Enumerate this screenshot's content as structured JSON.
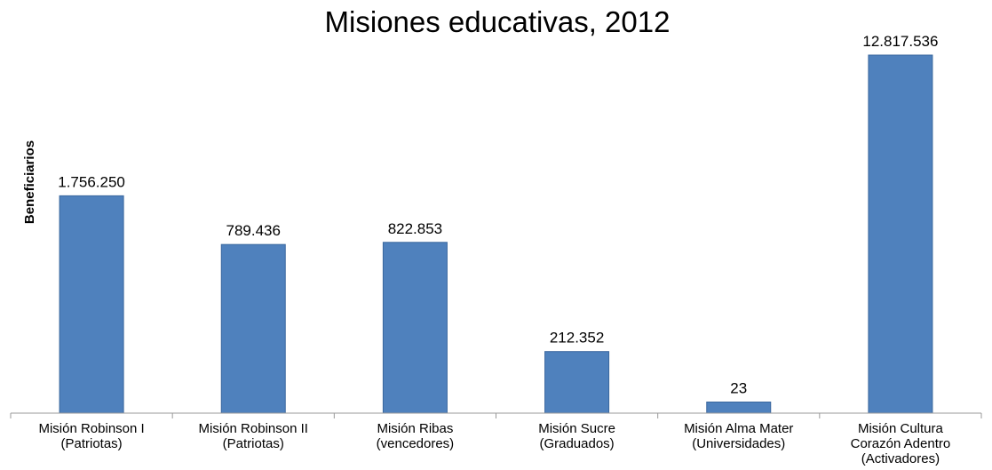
{
  "chart_data": {
    "type": "bar",
    "title": "Misiones educativas, 2012",
    "ylabel": "Beneficiarios",
    "xlabel": "",
    "categories": [
      [
        "Misión Robinson I",
        "(Patriotas)"
      ],
      [
        "Misión Robinson II",
        "(Patriotas)"
      ],
      [
        "Misión Ribas",
        "(vencedores)"
      ],
      [
        "Misión Sucre",
        "(Graduados)"
      ],
      [
        "Misión Alma Mater",
        "(Universidades)"
      ],
      [
        "Misión Cultura",
        "Corazón Adentro",
        "(Activadores)"
      ]
    ],
    "values": [
      1756250,
      789436,
      822853,
      212352,
      23,
      12817536
    ],
    "data_labels": [
      "1.756.250",
      "789.436",
      "822.853",
      "212.352",
      "23",
      "12.817.536"
    ],
    "bar_heights_relative": [
      0.607,
      0.471,
      0.477,
      0.172,
      0.031,
      1.0
    ],
    "bar_color": "#4F81BD",
    "bar_edge_color": "#3A679E",
    "grid": false,
    "legend": "none"
  }
}
